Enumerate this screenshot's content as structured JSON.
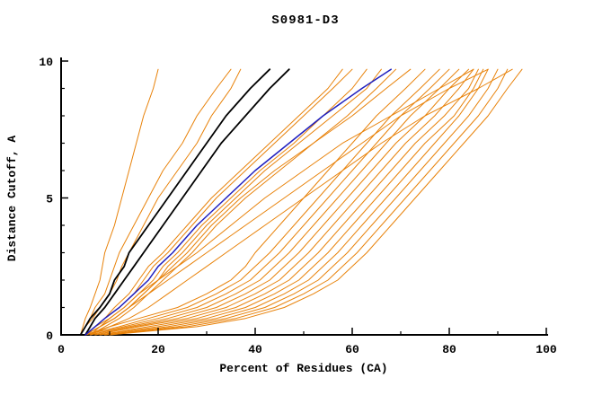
{
  "chart_data": {
    "type": "line",
    "title": "S0981-D3",
    "xlabel": "Percent of Residues (CA)",
    "ylabel": "Distance Cutoff, A",
    "xlim": [
      0,
      100
    ],
    "ylim": [
      0,
      10
    ],
    "grid": false,
    "legend": "none",
    "x_ticks": {
      "major": [
        0,
        20,
        40,
        60,
        80,
        100
      ],
      "labels": [
        "0",
        "20",
        "40",
        "60",
        "80",
        "100"
      ],
      "minor": [
        10,
        30,
        50,
        70,
        90
      ]
    },
    "y_ticks": {
      "major": [
        0,
        5,
        10
      ],
      "labels": [
        "0",
        "5",
        "10"
      ],
      "minor": [
        1,
        2,
        3,
        4,
        6,
        7,
        8,
        9
      ]
    },
    "colors": {
      "model": "#e8820a",
      "reference": "#000000",
      "highlight": "#1f1fbf",
      "axis": "#000000",
      "background": "#ffffff"
    },
    "y_samples": [
      0,
      0.3,
      0.6,
      1,
      1.5,
      2,
      2.5,
      3,
      4,
      5,
      6,
      7,
      8,
      9,
      9.7
    ],
    "series": [
      {
        "name": "orange-01",
        "color": "#e8820a",
        "width": 1,
        "x": [
          4,
          4.5,
          5,
          6,
          7,
          8,
          8.5,
          9,
          11,
          12.5,
          14,
          15.5,
          17,
          19,
          20
        ]
      },
      {
        "name": "orange-02",
        "color": "#e8820a",
        "width": 1,
        "x": [
          4,
          5,
          6,
          7,
          9,
          10,
          11,
          12,
          15,
          18,
          21,
          25,
          28,
          32,
          35
        ]
      },
      {
        "name": "orange-03",
        "color": "#e8820a",
        "width": 1,
        "x": [
          4,
          5,
          6.5,
          8,
          10,
          11.5,
          12.5,
          14,
          17,
          20,
          24,
          28,
          31,
          35,
          37
        ]
      },
      {
        "name": "orange-04",
        "color": "#e8820a",
        "width": 1,
        "x": [
          5,
          7,
          9,
          12,
          15,
          17,
          19,
          22,
          27,
          32,
          38,
          44,
          50,
          56,
          60
        ]
      },
      {
        "name": "orange-05",
        "color": "#e8820a",
        "width": 1,
        "x": [
          5,
          8,
          10,
          13,
          16,
          19,
          21,
          24,
          29,
          35,
          41,
          48,
          54,
          60,
          63
        ]
      },
      {
        "name": "orange-06",
        "color": "#e8820a",
        "width": 1,
        "x": [
          6,
          8,
          11,
          14,
          17,
          20,
          22,
          25,
          30,
          36,
          42,
          49,
          56,
          63,
          66
        ]
      },
      {
        "name": "orange-07",
        "color": "#e8820a",
        "width": 1,
        "x": [
          6,
          9,
          12,
          15,
          18,
          21,
          24,
          27,
          32,
          38,
          45,
          52,
          59,
          65,
          69
        ]
      },
      {
        "name": "orange-08",
        "color": "#e8820a",
        "width": 1,
        "x": [
          5,
          10,
          16,
          24,
          30,
          35,
          38,
          40,
          45,
          50,
          55,
          60,
          65,
          71,
          75
        ]
      },
      {
        "name": "orange-09",
        "color": "#e8820a",
        "width": 1,
        "x": [
          5,
          12,
          18,
          26,
          32,
          37,
          40,
          43,
          48,
          53,
          58,
          63,
          68,
          74,
          78
        ]
      },
      {
        "name": "orange-10",
        "color": "#e8820a",
        "width": 1,
        "x": [
          6,
          13,
          20,
          28,
          34,
          39,
          42,
          45,
          50,
          55,
          60,
          65,
          70,
          76,
          80
        ]
      },
      {
        "name": "orange-11",
        "color": "#e8820a",
        "width": 1,
        "x": [
          6,
          14,
          22,
          30,
          36,
          41,
          44,
          47,
          52,
          57,
          62,
          67,
          72,
          78,
          82
        ]
      },
      {
        "name": "orange-12",
        "color": "#e8820a",
        "width": 1,
        "x": [
          7,
          15,
          24,
          32,
          38,
          43,
          46,
          49,
          54,
          59,
          64,
          69,
          75,
          80,
          84
        ]
      },
      {
        "name": "orange-13",
        "color": "#e8820a",
        "width": 1,
        "x": [
          7,
          16,
          26,
          34,
          40,
          45,
          48,
          51,
          56,
          61,
          66,
          71,
          77,
          82,
          85
        ]
      },
      {
        "name": "orange-14",
        "color": "#e8820a",
        "width": 1,
        "x": [
          8,
          18,
          28,
          36,
          42,
          47,
          50,
          53,
          58,
          63,
          68,
          73,
          79,
          84,
          86
        ]
      },
      {
        "name": "orange-15",
        "color": "#e8820a",
        "width": 1,
        "x": [
          8,
          20,
          30,
          38,
          44,
          49,
          52,
          55,
          60,
          65,
          70,
          75,
          81,
          85,
          87
        ]
      },
      {
        "name": "orange-16",
        "color": "#e8820a",
        "width": 1,
        "x": [
          9,
          22,
          32,
          40,
          46,
          51,
          54,
          57,
          62,
          67,
          72,
          77,
          82,
          86,
          88
        ]
      },
      {
        "name": "orange-17",
        "color": "#e8820a",
        "width": 1,
        "x": [
          9,
          24,
          34,
          42,
          48,
          53,
          56,
          59,
          64,
          69,
          74,
          79,
          84,
          88,
          90
        ]
      },
      {
        "name": "orange-18",
        "color": "#e8820a",
        "width": 1,
        "x": [
          10,
          26,
          36,
          44,
          50,
          55,
          58,
          61,
          66,
          71,
          76,
          81,
          86,
          90,
          92
        ]
      },
      {
        "name": "orange-19",
        "color": "#e8820a",
        "width": 1,
        "x": [
          10,
          28,
          38,
          46,
          52,
          57,
          60,
          63,
          68,
          73,
          78,
          83,
          88,
          92,
          95
        ]
      },
      {
        "name": "orange-20",
        "color": "#e8820a",
        "width": 1,
        "x": [
          5,
          8,
          11,
          14,
          18,
          22,
          26,
          30,
          38,
          46,
          54,
          62,
          70,
          80,
          88
        ]
      },
      {
        "name": "orange-21",
        "color": "#e8820a",
        "width": 1,
        "x": [
          5,
          7,
          10,
          13,
          16,
          20,
          24,
          28,
          35,
          42,
          50,
          58,
          68,
          78,
          85
        ]
      },
      {
        "name": "orange-22",
        "color": "#e8820a",
        "width": 1,
        "x": [
          6,
          10,
          14,
          18,
          22,
          26,
          30,
          34,
          42,
          50,
          58,
          66,
          75,
          86,
          93
        ]
      },
      {
        "name": "orange-23",
        "color": "#e8820a",
        "width": 1,
        "x": [
          5,
          8,
          11,
          14,
          17,
          20,
          23,
          26,
          31,
          37,
          44,
          52,
          60,
          67,
          72
        ]
      },
      {
        "name": "orange-24",
        "color": "#e8820a",
        "width": 1,
        "x": [
          5,
          7,
          9,
          11,
          14,
          16,
          18,
          21,
          26,
          31,
          37,
          43,
          49,
          55,
          58
        ]
      },
      {
        "name": "black-1",
        "color": "#000000",
        "width": 1.8,
        "x": [
          4,
          5,
          6,
          8,
          10,
          11,
          13,
          14,
          18,
          22,
          26,
          30,
          34,
          39,
          43
        ]
      },
      {
        "name": "black-2",
        "color": "#000000",
        "width": 1.8,
        "x": [
          5,
          6,
          7,
          9,
          11,
          13,
          15,
          17,
          21,
          25,
          29,
          33,
          38,
          43,
          47
        ]
      },
      {
        "name": "blue-1",
        "color": "#1f1fbf",
        "width": 1.5,
        "x": [
          5,
          7,
          9,
          12,
          15,
          18,
          20,
          23,
          28,
          34,
          40,
          47,
          54,
          62,
          68
        ]
      }
    ]
  }
}
